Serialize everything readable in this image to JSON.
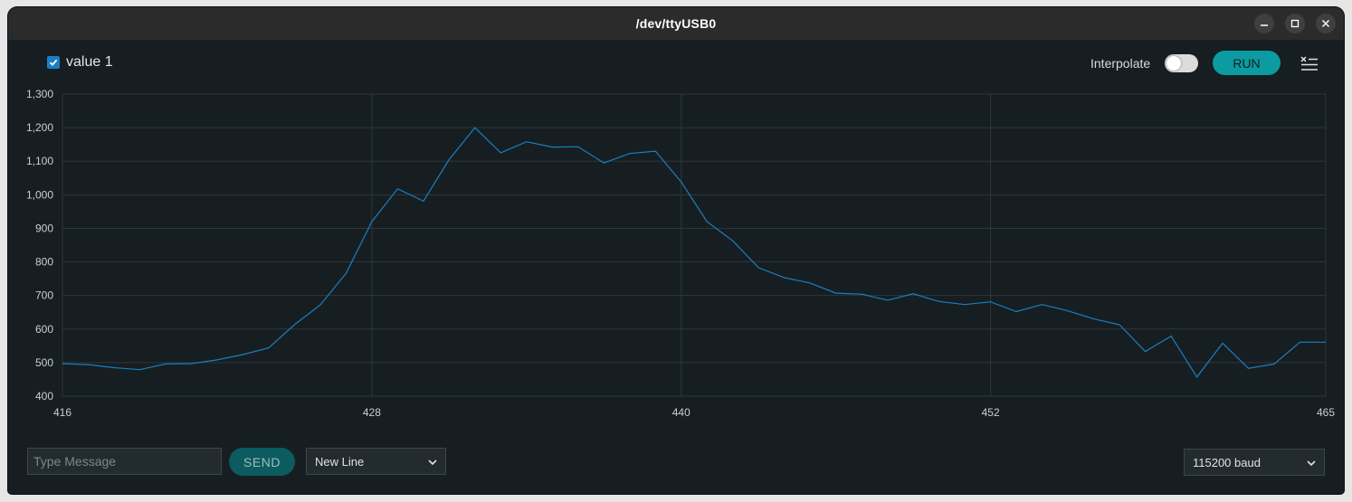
{
  "window": {
    "title": "/dev/ttyUSB0"
  },
  "toolbar": {
    "series_label": "value 1",
    "series_checked": true,
    "interpolate_label": "Interpolate",
    "interpolate_on": false,
    "run_label": "RUN"
  },
  "footer": {
    "message_placeholder": "Type Message",
    "send_label": "SEND",
    "line_ending": "New Line",
    "baud": "115200 baud"
  },
  "colors": {
    "line": "#1a7fc0",
    "accent": "#0c9ba1",
    "background": "#171e21"
  },
  "chart_data": {
    "type": "line",
    "title": "",
    "xlabel": "",
    "ylabel": "",
    "xlim": [
      416,
      465
    ],
    "ylim": [
      400,
      1300
    ],
    "x_ticks": [
      416,
      428,
      440,
      452,
      465
    ],
    "y_ticks": [
      400,
      500,
      600,
      700,
      800,
      900,
      1000,
      1100,
      1200,
      1300
    ],
    "grid": true,
    "series": [
      {
        "name": "value 1",
        "x": [
          416,
          417,
          418,
          419,
          420,
          421,
          422,
          423,
          424,
          425,
          426,
          427,
          428,
          429,
          430,
          431,
          432,
          433,
          434,
          435,
          436,
          437,
          438,
          439,
          440,
          441,
          442,
          443,
          444,
          445,
          446,
          447,
          448,
          449,
          450,
          451,
          452,
          453,
          454,
          455,
          456,
          457,
          458,
          459,
          460,
          461,
          462,
          463,
          464,
          465
        ],
        "values": [
          497,
          494,
          485,
          479,
          496,
          497,
          508,
          524,
          544,
          613,
          672,
          766,
          920,
          1018,
          981,
          1105,
          1200,
          1125,
          1158,
          1142,
          1143,
          1095,
          1123,
          1130,
          1038,
          920,
          863,
          783,
          753,
          737,
          707,
          704,
          686,
          705,
          682,
          673,
          681,
          652,
          673,
          654,
          630,
          613,
          533,
          579,
          457,
          558,
          483,
          496,
          561,
          561
        ]
      }
    ]
  }
}
